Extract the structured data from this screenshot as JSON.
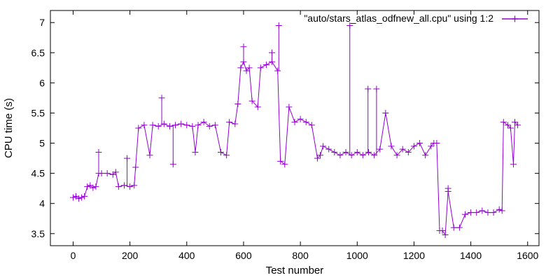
{
  "chart_data": {
    "type": "line",
    "title": "",
    "xlabel": "Test number",
    "ylabel": "CPU time (s)",
    "xlim": [
      -80,
      1640
    ],
    "ylim": [
      3.3,
      7.2
    ],
    "xticks": [
      0,
      200,
      400,
      600,
      800,
      1000,
      1200,
      1400,
      1600
    ],
    "yticks": [
      3.5,
      4,
      4.5,
      5,
      5.5,
      6,
      6.5,
      7
    ],
    "ytick_labels": [
      "3.5",
      "4",
      "4.5",
      "5",
      "5.5",
      "6",
      "6.5",
      "7"
    ],
    "grid": false,
    "legend_position": "top-right",
    "marker": "plus",
    "line_color": "#9400d3",
    "series": [
      {
        "name": "\"auto/stars_atlas_odfnew_all.cpu\" using 1:2",
        "points": [
          [
            0,
            4.1
          ],
          [
            10,
            4.12
          ],
          [
            20,
            4.08
          ],
          [
            30,
            4.1
          ],
          [
            40,
            4.12
          ],
          [
            50,
            4.28
          ],
          [
            60,
            4.3
          ],
          [
            70,
            4.26
          ],
          [
            80,
            4.28
          ],
          [
            90,
            4.5
          ],
          [
            100,
            4.5
          ],
          [
            120,
            4.5
          ],
          [
            140,
            4.48
          ],
          [
            150,
            4.52
          ],
          [
            160,
            4.28
          ],
          [
            180,
            4.3
          ],
          [
            200,
            4.28
          ],
          [
            215,
            4.3
          ],
          [
            220,
            4.6
          ],
          [
            230,
            5.25
          ],
          [
            250,
            5.3
          ],
          [
            270,
            4.8
          ],
          [
            280,
            5.3
          ],
          [
            300,
            5.28
          ],
          [
            320,
            5.32
          ],
          [
            340,
            5.28
          ],
          [
            360,
            5.3
          ],
          [
            380,
            5.32
          ],
          [
            400,
            5.3
          ],
          [
            420,
            5.28
          ],
          [
            430,
            4.85
          ],
          [
            440,
            5.3
          ],
          [
            460,
            5.35
          ],
          [
            480,
            5.28
          ],
          [
            500,
            5.3
          ],
          [
            520,
            4.85
          ],
          [
            540,
            4.8
          ],
          [
            550,
            5.35
          ],
          [
            570,
            5.32
          ],
          [
            580,
            5.65
          ],
          [
            590,
            6.25
          ],
          [
            600,
            6.35
          ],
          [
            610,
            6.2
          ],
          [
            620,
            6.25
          ],
          [
            630,
            5.7
          ],
          [
            650,
            5.6
          ],
          [
            660,
            6.25
          ],
          [
            680,
            6.3
          ],
          [
            700,
            6.35
          ],
          [
            720,
            6.2
          ],
          [
            730,
            4.7
          ],
          [
            745,
            4.65
          ],
          [
            760,
            5.6
          ],
          [
            780,
            5.35
          ],
          [
            800,
            5.4
          ],
          [
            820,
            5.35
          ],
          [
            840,
            5.3
          ],
          [
            860,
            4.75
          ],
          [
            870,
            4.8
          ],
          [
            880,
            4.95
          ],
          [
            900,
            4.9
          ],
          [
            920,
            4.85
          ],
          [
            940,
            4.8
          ],
          [
            960,
            4.85
          ],
          [
            980,
            4.8
          ],
          [
            1000,
            4.85
          ],
          [
            1020,
            4.8
          ],
          [
            1040,
            4.85
          ],
          [
            1060,
            4.8
          ],
          [
            1080,
            4.9
          ],
          [
            1100,
            5.5
          ],
          [
            1120,
            4.95
          ],
          [
            1140,
            4.8
          ],
          [
            1160,
            4.9
          ],
          [
            1180,
            4.85
          ],
          [
            1200,
            4.95
          ],
          [
            1220,
            5.0
          ],
          [
            1240,
            4.8
          ],
          [
            1260,
            4.95
          ],
          [
            1270,
            5.0
          ],
          [
            1280,
            5.0
          ],
          [
            1290,
            3.55
          ],
          [
            1300,
            3.55
          ],
          [
            1310,
            3.48
          ],
          [
            1320,
            4.2
          ],
          [
            1340,
            3.6
          ],
          [
            1360,
            3.6
          ],
          [
            1380,
            3.82
          ],
          [
            1400,
            3.85
          ],
          [
            1420,
            3.85
          ],
          [
            1440,
            3.88
          ],
          [
            1460,
            3.85
          ],
          [
            1480,
            3.85
          ],
          [
            1500,
            3.9
          ],
          [
            1510,
            3.88
          ],
          [
            1515,
            5.35
          ],
          [
            1530,
            5.3
          ],
          [
            1540,
            5.25
          ],
          [
            1550,
            4.65
          ],
          [
            1555,
            5.35
          ],
          [
            1565,
            5.3
          ]
        ]
      }
    ],
    "spikes": [
      [
        90,
        4.85
      ],
      [
        190,
        4.75
      ],
      [
        312,
        5.75
      ],
      [
        352,
        4.65
      ],
      [
        600,
        6.6
      ],
      [
        700,
        6.5
      ],
      [
        724,
        6.95
      ],
      [
        974,
        6.95
      ],
      [
        1038,
        5.9
      ],
      [
        1068,
        5.9
      ],
      [
        1320,
        4.25
      ]
    ]
  }
}
